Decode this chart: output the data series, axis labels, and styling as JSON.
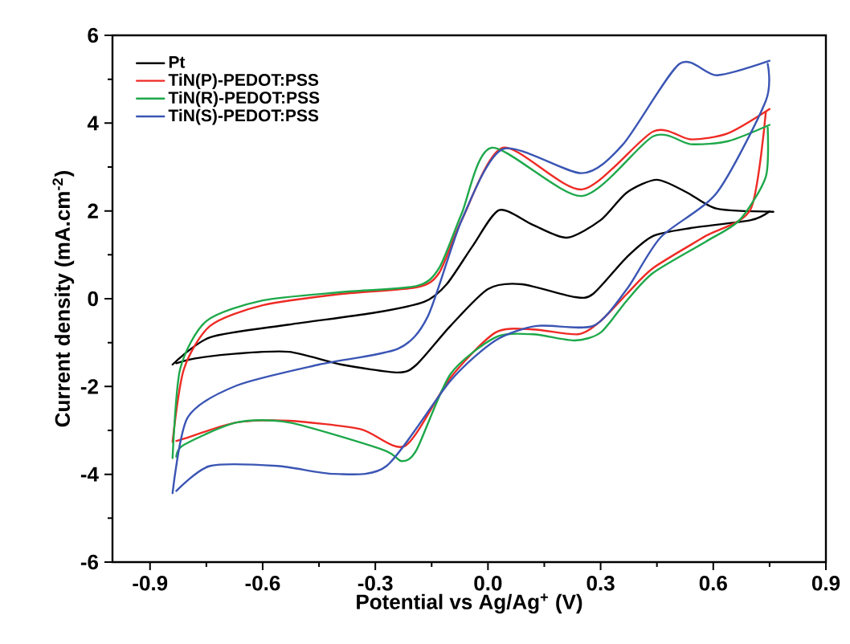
{
  "chart_data": {
    "type": "line",
    "xlabel": "Potential vs Ag/Ag$^{+}$ (V)",
    "ylabel": "Current density (mA.cm$^{-2}$)",
    "xlim": [
      -1.0,
      0.9
    ],
    "ylim": [
      -6,
      6
    ],
    "xticks": [
      {
        "value": -0.9,
        "label": "-0.9"
      },
      {
        "value": -0.6,
        "label": "-0.6"
      },
      {
        "value": -0.3,
        "label": "-0.3"
      },
      {
        "value": 0,
        "label": "0.0"
      },
      {
        "value": 0.3,
        "label": "0.3"
      },
      {
        "value": 0.6,
        "label": "0.6"
      },
      {
        "value": 0.9,
        "label": "0.9"
      }
    ],
    "yticks": [
      -6,
      -4,
      -2,
      0,
      2,
      4,
      6
    ],
    "legend": "top left",
    "grid": false,
    "marker": "none",
    "line_style": "solid",
    "series": [
      {
        "name": "Pt",
        "color": "#000000",
        "x": [
          -0.84,
          -0.74,
          -0.53,
          -0.31,
          -0.17,
          -0.11,
          -0.04,
          0.03,
          0.12,
          0.21,
          0.3,
          0.37,
          0.45,
          0.53,
          0.61,
          0.76
        ],
        "values": [
          -1.5,
          -0.88,
          -0.59,
          -0.33,
          -0.07,
          0.33,
          1.21,
          2.02,
          1.68,
          1.39,
          1.79,
          2.42,
          2.71,
          2.42,
          2.05,
          1.98
        ]
      },
      {
        "color": "#000000",
        "x": [
          0.75,
          0.7,
          0.54,
          0.44,
          0.37,
          0.28,
          0.23,
          0.09,
          0.0,
          -0.1,
          -0.19,
          -0.24,
          -0.39,
          -0.53,
          -0.67,
          -0.78,
          -0.83
        ],
        "values": [
          1.99,
          1.79,
          1.61,
          1.43,
          0.95,
          0.11,
          0.04,
          0.33,
          0.22,
          -0.62,
          -1.5,
          -1.68,
          -1.5,
          -1.21,
          -1.25,
          -1.36,
          -1.47
        ]
      },
      {
        "name": "TiN(P)-PEDOT:PSS",
        "color": "#ee2a24",
        "x": [
          -0.84,
          -0.81,
          -0.74,
          -0.6,
          -0.39,
          -0.19,
          -0.13,
          -0.07,
          0.04,
          0.25,
          0.44,
          0.54,
          0.64,
          0.75
        ],
        "values": [
          -3.26,
          -1.61,
          -0.62,
          -0.15,
          0.11,
          0.26,
          0.59,
          1.79,
          3.44,
          2.49,
          3.81,
          3.63,
          3.77,
          4.32
        ]
      },
      {
        "color": "#ee2a24",
        "x": [
          0.74,
          0.7,
          0.58,
          0.44,
          0.37,
          0.3,
          0.24,
          0.12,
          0.02,
          -0.1,
          -0.22,
          -0.34,
          -0.53,
          -0.67,
          -0.81,
          -0.83
        ],
        "values": [
          4.25,
          2.05,
          1.43,
          0.7,
          0.11,
          -0.51,
          -0.81,
          -0.7,
          -0.77,
          -1.8,
          -3.35,
          -2.97,
          -2.78,
          -2.82,
          -3.19,
          -3.24
        ]
      },
      {
        "name": "TiN(R)-PEDOT:PSS",
        "color": "#1ea84a",
        "x": [
          -0.84,
          -0.82,
          -0.75,
          -0.6,
          -0.39,
          -0.19,
          -0.13,
          -0.07,
          0.01,
          0.25,
          0.44,
          0.54,
          0.64,
          0.75
        ],
        "values": [
          -3.63,
          -1.61,
          -0.51,
          -0.04,
          0.15,
          0.29,
          0.7,
          1.94,
          3.44,
          2.34,
          3.7,
          3.52,
          3.59,
          3.96
        ]
      },
      {
        "color": "#1ea84a",
        "x": [
          0.745,
          0.74,
          0.67,
          0.58,
          0.44,
          0.37,
          0.3,
          0.23,
          0.12,
          0.02,
          -0.1,
          -0.19,
          -0.23,
          -0.28,
          -0.53,
          -0.67,
          -0.81,
          -0.83
        ],
        "values": [
          3.9,
          2.78,
          1.79,
          1.3,
          0.59,
          -0.04,
          -0.77,
          -0.95,
          -0.81,
          -0.88,
          -1.72,
          -3.44,
          -3.7,
          -3.44,
          -2.82,
          -2.82,
          -3.33,
          -3.6
        ]
      },
      {
        "name": "TiN(S)-PEDOT:PSS",
        "color": "#3a55b4",
        "x": [
          -0.84,
          -0.8,
          -0.67,
          -0.45,
          -0.24,
          -0.16,
          -0.07,
          0.04,
          0.25,
          0.36,
          0.51,
          0.61,
          0.75
        ],
        "values": [
          -4.43,
          -2.71,
          -1.98,
          -1.5,
          -1.14,
          -0.4,
          1.79,
          3.41,
          2.86,
          3.52,
          5.35,
          5.09,
          5.42
        ]
      },
      {
        "color": "#3a55b4",
        "x": [
          0.745,
          0.74,
          0.61,
          0.46,
          0.37,
          0.28,
          0.13,
          0.02,
          -0.1,
          -0.27,
          -0.41,
          -0.56,
          -0.74,
          -0.83
        ],
        "values": [
          5.35,
          4.51,
          2.42,
          1.4,
          0.22,
          -0.62,
          -0.62,
          -0.95,
          -1.87,
          -3.81,
          -3.99,
          -3.81,
          -3.81,
          -4.38
        ]
      }
    ]
  }
}
